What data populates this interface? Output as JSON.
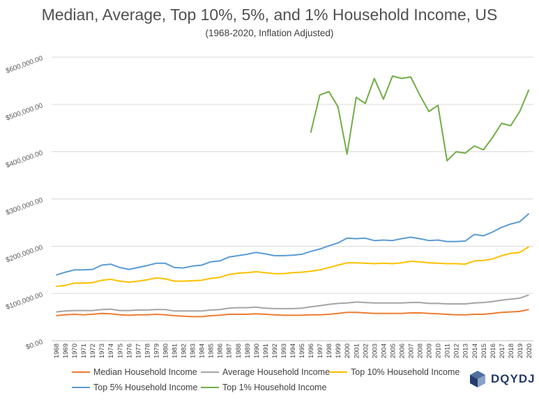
{
  "chart_data": {
    "type": "line",
    "title": "Median, Average, Top 10%, 5%, and 1% Household Income, US",
    "subtitle": "(1968-2020, Inflation Adjusted)",
    "ylim": [
      0,
      600000
    ],
    "yticks": [
      "$0.00",
      "$100,000.00",
      "$200,000.00",
      "$300,000.00",
      "$400,000.00",
      "$500,000.00",
      "$600,000.00"
    ],
    "grid": true,
    "legend_position": "bottom",
    "x": [
      1968,
      1969,
      1970,
      1971,
      1972,
      1973,
      1974,
      1975,
      1976,
      1977,
      1978,
      1979,
      1980,
      1981,
      1982,
      1983,
      1984,
      1985,
      1986,
      1987,
      1988,
      1989,
      1990,
      1991,
      1992,
      1993,
      1994,
      1995,
      1996,
      1997,
      1998,
      1999,
      2000,
      2001,
      2002,
      2003,
      2004,
      2005,
      2006,
      2007,
      2008,
      2009,
      2010,
      2011,
      2012,
      2013,
      2014,
      2015,
      2016,
      2017,
      2018,
      2019,
      2020
    ],
    "series": [
      {
        "name": "Median Household Income",
        "color": "#ed7d31",
        "values": [
          53000,
          55000,
          56000,
          55000,
          56000,
          58000,
          57000,
          55000,
          54000,
          55000,
          55000,
          56000,
          55000,
          53000,
          52000,
          51000,
          51000,
          53000,
          54000,
          56000,
          56000,
          56000,
          57000,
          56000,
          55000,
          54000,
          54000,
          54000,
          55000,
          55000,
          56000,
          58000,
          60000,
          60000,
          59000,
          58000,
          58000,
          58000,
          58000,
          59000,
          59000,
          58000,
          57000,
          56000,
          55000,
          55000,
          56000,
          56000,
          58000,
          60000,
          61000,
          62000,
          66000
        ]
      },
      {
        "name": "Average Household Income",
        "color": "#a5a5a5",
        "values": [
          61000,
          63000,
          64000,
          64000,
          64000,
          66000,
          67000,
          64000,
          64000,
          65000,
          65000,
          66000,
          66000,
          63000,
          63000,
          63000,
          63000,
          65000,
          66000,
          69000,
          70000,
          70000,
          71000,
          69000,
          68000,
          68000,
          68000,
          69000,
          72000,
          74000,
          77000,
          79000,
          80000,
          82000,
          81000,
          80000,
          80000,
          80000,
          80000,
          81000,
          81000,
          79000,
          79000,
          78000,
          78000,
          78000,
          80000,
          81000,
          83000,
          86000,
          88000,
          90000,
          97000
        ]
      },
      {
        "name": "Top 10% Household Income",
        "color": "#ffc000",
        "values": [
          115000,
          117000,
          122000,
          122000,
          123000,
          128000,
          130000,
          126000,
          124000,
          126000,
          129000,
          133000,
          131000,
          126000,
          126000,
          127000,
          128000,
          132000,
          134000,
          140000,
          143000,
          144000,
          146000,
          144000,
          142000,
          142000,
          144000,
          145000,
          147000,
          150000,
          155000,
          160000,
          165000,
          165000,
          164000,
          163000,
          164000,
          163000,
          165000,
          168000,
          167000,
          165000,
          164000,
          163000,
          163000,
          162000,
          169000,
          170000,
          173000,
          180000,
          185000,
          187000,
          199000
        ]
      },
      {
        "name": "Top 5% Household Income",
        "color": "#5b9bd5",
        "values": [
          139000,
          145000,
          150000,
          150000,
          151000,
          160000,
          162000,
          155000,
          151000,
          155000,
          159000,
          164000,
          164000,
          155000,
          154000,
          158000,
          160000,
          167000,
          169000,
          177000,
          180000,
          183000,
          187000,
          184000,
          180000,
          180000,
          181000,
          183000,
          189000,
          194000,
          201000,
          207000,
          217000,
          216000,
          217000,
          212000,
          213000,
          212000,
          216000,
          219000,
          216000,
          212000,
          213000,
          210000,
          210000,
          211000,
          225000,
          222000,
          230000,
          240000,
          247000,
          252000,
          269000
        ]
      },
      {
        "name": "Top 1% Household Income",
        "color": "#70ad47",
        "values": [
          null,
          null,
          null,
          null,
          null,
          null,
          null,
          null,
          null,
          null,
          null,
          null,
          null,
          null,
          null,
          null,
          null,
          null,
          null,
          null,
          null,
          null,
          null,
          null,
          null,
          null,
          null,
          null,
          440000,
          520000,
          527000,
          495000,
          395000,
          515000,
          502000,
          555000,
          511000,
          560000,
          555000,
          558000,
          520000,
          485000,
          498000,
          381000,
          400000,
          397000,
          412000,
          404000,
          430000,
          460000,
          455000,
          485000,
          531000
        ]
      }
    ]
  },
  "brand": {
    "name": "DQYDJ"
  }
}
